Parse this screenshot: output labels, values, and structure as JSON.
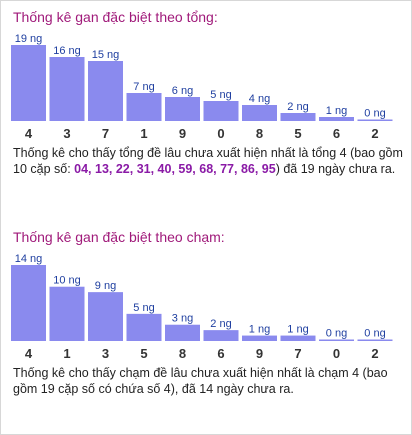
{
  "sections": [
    {
      "title": "Thống kê gan đặc biệt theo tổng:",
      "description": {
        "before": "Thống kê cho thấy tổng đề lâu chưa xuất hiện nhất là tổng 4 (bao gồm 10 cặp số: ",
        "highlight": "04, 13, 22, 31, 40, 59, 68, 77, 86, 95",
        "after": ") đã 19 ngày chưa ra."
      }
    },
    {
      "title": "Thống kê gan đặc biệt theo chạm:",
      "description": {
        "before": "Thống kê cho thấy chạm đề lâu chưa xuất hiện nhất là chạm 4 (bao gồm 19 cặp số có chứa số 4), đã 14 ngày chưa ra.",
        "highlight": "",
        "after": ""
      }
    }
  ],
  "colors": {
    "bar": "#8a8aee",
    "value_label": "#1f3fa0",
    "category_label": "#333333",
    "title": "#a01a7a",
    "highlight": "#8a1aa6"
  },
  "chart_data": [
    {
      "type": "bar",
      "title": "Thống kê gan đặc biệt theo tổng:",
      "categories": [
        "4",
        "3",
        "7",
        "1",
        "9",
        "0",
        "8",
        "5",
        "6",
        "2"
      ],
      "values": [
        19,
        16,
        15,
        7,
        6,
        5,
        4,
        2,
        1,
        0
      ],
      "value_labels": [
        "19 ng",
        "16 ng",
        "15 ng",
        "7 ng",
        "6 ng",
        "5 ng",
        "4 ng",
        "2 ng",
        "1 ng",
        "0 ng"
      ],
      "xlabel": "",
      "ylabel": "",
      "ylim": [
        0,
        19
      ],
      "grid": false,
      "legend": "none"
    },
    {
      "type": "bar",
      "title": "Thống kê gan đặc biệt theo chạm:",
      "categories": [
        "4",
        "1",
        "3",
        "5",
        "8",
        "6",
        "9",
        "7",
        "0",
        "2"
      ],
      "values": [
        14,
        10,
        9,
        5,
        3,
        2,
        1,
        1,
        0,
        0
      ],
      "value_labels": [
        "14 ng",
        "10 ng",
        "9 ng",
        "5 ng",
        "3 ng",
        "2 ng",
        "1 ng",
        "1 ng",
        "0 ng",
        "0 ng"
      ],
      "xlabel": "",
      "ylabel": "",
      "ylim": [
        0,
        14
      ],
      "grid": false,
      "legend": "none"
    }
  ]
}
